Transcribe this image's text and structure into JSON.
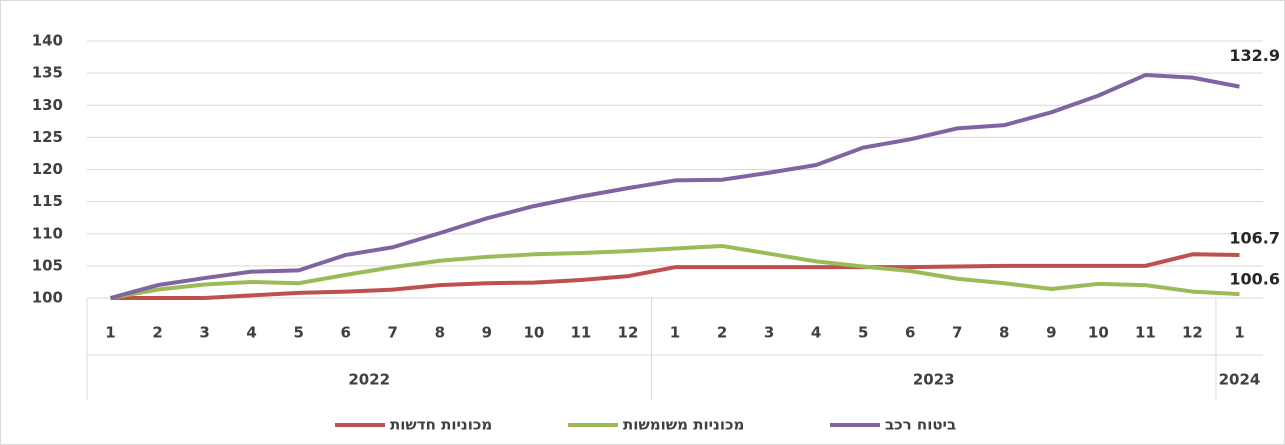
{
  "chart_data": {
    "type": "line",
    "groups": [
      {
        "name": "2022",
        "categories": [
          "1",
          "2",
          "3",
          "4",
          "5",
          "6",
          "7",
          "8",
          "9",
          "10",
          "11",
          "12"
        ]
      },
      {
        "name": "2023",
        "categories": [
          "1",
          "2",
          "3",
          "4",
          "5",
          "6",
          "7",
          "8",
          "9",
          "10",
          "11",
          "12"
        ]
      },
      {
        "name": "2024",
        "categories": [
          "1"
        ]
      }
    ],
    "series": [
      {
        "name": "מכוניות חדשות",
        "color": "#c0504d",
        "values": [
          100,
          100,
          100,
          100.4,
          100.8,
          101.0,
          101.3,
          102.0,
          102.3,
          102.4,
          102.8,
          103.4,
          104.8,
          104.8,
          104.8,
          104.8,
          104.8,
          104.8,
          104.9,
          105.0,
          105.0,
          105.0,
          105.0,
          106.8,
          106.7
        ]
      },
      {
        "name": "מכוניות משומשות",
        "color": "#9bbb59",
        "values": [
          100,
          101.3,
          102.1,
          102.5,
          102.3,
          103.6,
          104.8,
          105.8,
          106.4,
          106.8,
          107.0,
          107.3,
          107.7,
          108.1,
          106.9,
          105.7,
          104.9,
          104.2,
          103.0,
          102.3,
          101.4,
          102.2,
          102.0,
          101.0,
          100.6
        ]
      },
      {
        "name": "ביטוח רכב",
        "color": "#8064a2",
        "values": [
          100,
          102.0,
          103.1,
          104.1,
          104.3,
          106.7,
          107.9,
          110.1,
          112.4,
          114.3,
          115.8,
          117.1,
          118.3,
          118.4,
          119.5,
          120.7,
          123.4,
          124.7,
          126.4,
          126.9,
          128.9,
          131.5,
          134.7,
          134.3,
          132.9
        ]
      }
    ],
    "ylim": [
      100,
      140
    ],
    "yticks": [
      100,
      105,
      110,
      115,
      120,
      125,
      130,
      135,
      140
    ],
    "grid": true,
    "legend": "bottom"
  }
}
